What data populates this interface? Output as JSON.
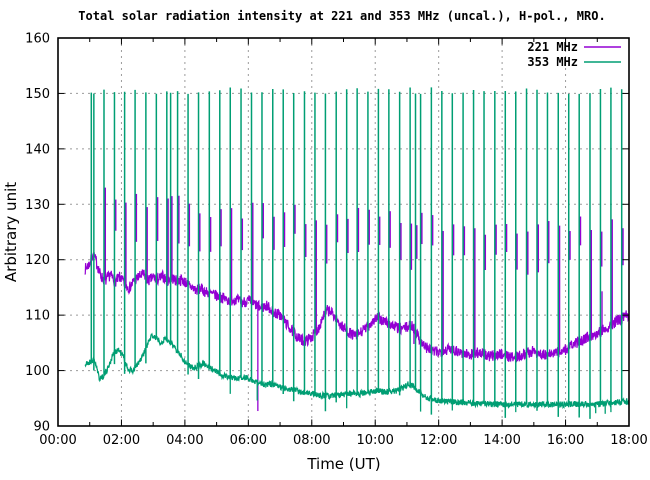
{
  "chart_data": {
    "type": "line",
    "title": "Total solar radiation intensity at 221 and 353 MHz (uncal.), H-pol., MRO.",
    "xlabel": "Time (UT)",
    "ylabel": "Arbitrary unit",
    "xlim": [
      0,
      18
    ],
    "ylim": [
      90,
      160
    ],
    "xtick_hours": [
      0,
      2,
      4,
      6,
      8,
      10,
      12,
      14,
      16,
      18
    ],
    "xtick_labels": [
      "00:00",
      "02:00",
      "04:00",
      "06:00",
      "08:00",
      "10:00",
      "12:00",
      "14:00",
      "16:00",
      "18:00"
    ],
    "minor_xtick_step_hours": 1,
    "ytick_values": [
      90,
      100,
      110,
      120,
      130,
      140,
      150,
      160
    ],
    "grid": {
      "on": true,
      "color": "#9b9b9b",
      "dash": [
        2,
        4
      ]
    },
    "background_color": "#ffffff",
    "border_color": "#000000",
    "legend": {
      "position": "top-right",
      "entries": [
        {
          "label": "221 MHz",
          "color": "#9400d3"
        },
        {
          "label": "353 MHz",
          "color": "#009e73"
        }
      ]
    },
    "data_start_hour": 0.85,
    "calibration_spike_times": [
      1.05,
      1.13,
      1.45,
      1.78,
      2.1,
      2.43,
      2.77,
      3.1,
      3.43,
      3.55,
      3.77,
      4.1,
      4.43,
      4.77,
      5.1,
      5.43,
      5.77,
      6.1,
      6.43,
      6.77,
      7.1,
      7.43,
      7.77,
      8.1,
      8.43,
      8.77,
      9.1,
      9.43,
      9.77,
      10.1,
      10.43,
      10.77,
      11.1,
      11.27,
      11.43,
      11.77,
      12.1,
      12.43,
      12.77,
      13.1,
      13.43,
      13.77,
      14.1,
      14.43,
      14.77,
      15.1,
      15.43,
      15.77,
      16.1,
      16.43,
      16.77,
      17.1,
      17.43,
      17.77
    ],
    "series": [
      {
        "name": "221 MHz",
        "color": "#9400d3",
        "noise": 1.0,
        "baseline": [
          [
            0.85,
            118.3
          ],
          [
            1.0,
            119.3
          ],
          [
            1.1,
            121.0
          ],
          [
            1.2,
            119.8
          ],
          [
            1.35,
            117.0
          ],
          [
            1.5,
            116.2
          ],
          [
            1.65,
            117.3
          ],
          [
            1.8,
            116.0
          ],
          [
            1.95,
            116.9
          ],
          [
            2.1,
            115.6
          ],
          [
            2.25,
            114.9
          ],
          [
            2.4,
            116.2
          ],
          [
            2.55,
            116.9
          ],
          [
            2.7,
            117.4
          ],
          [
            2.85,
            116.2
          ],
          [
            3.0,
            116.8
          ],
          [
            3.15,
            116.4
          ],
          [
            3.3,
            117.0
          ],
          [
            3.45,
            116.2
          ],
          [
            3.6,
            116.7
          ],
          [
            3.75,
            116.1
          ],
          [
            3.9,
            116.4
          ],
          [
            4.05,
            115.8
          ],
          [
            4.2,
            115.1
          ],
          [
            4.35,
            114.5
          ],
          [
            4.5,
            114.8
          ],
          [
            4.65,
            114.2
          ],
          [
            4.8,
            113.9
          ],
          [
            5.0,
            113.5
          ],
          [
            5.2,
            113.1
          ],
          [
            5.4,
            112.6
          ],
          [
            5.6,
            112.9
          ],
          [
            5.8,
            112.3
          ],
          [
            6.0,
            112.6
          ],
          [
            6.2,
            112.0
          ],
          [
            6.4,
            111.3
          ],
          [
            6.6,
            111.7
          ],
          [
            6.8,
            110.5
          ],
          [
            7.0,
            110.0
          ],
          [
            7.2,
            108.5
          ],
          [
            7.4,
            107.0
          ],
          [
            7.6,
            105.7
          ],
          [
            7.8,
            105.3
          ],
          [
            8.0,
            106.1
          ],
          [
            8.2,
            107.5
          ],
          [
            8.35,
            109.7
          ],
          [
            8.5,
            110.9
          ],
          [
            8.65,
            110.3
          ],
          [
            8.8,
            109.0
          ],
          [
            9.0,
            107.7
          ],
          [
            9.2,
            106.8
          ],
          [
            9.35,
            106.2
          ],
          [
            9.5,
            106.7
          ],
          [
            9.7,
            107.6
          ],
          [
            9.9,
            108.8
          ],
          [
            10.05,
            109.5
          ],
          [
            10.2,
            109.1
          ],
          [
            10.4,
            108.6
          ],
          [
            10.6,
            108.0
          ],
          [
            10.8,
            107.5
          ],
          [
            11.0,
            107.8
          ],
          [
            11.15,
            108.2
          ],
          [
            11.3,
            106.8
          ],
          [
            11.45,
            105.1
          ],
          [
            11.6,
            104.2
          ],
          [
            11.8,
            103.5
          ],
          [
            12.0,
            103.3
          ],
          [
            12.2,
            103.7
          ],
          [
            12.4,
            104.0
          ],
          [
            12.6,
            103.5
          ],
          [
            12.8,
            103.1
          ],
          [
            13.0,
            102.9
          ],
          [
            13.2,
            103.3
          ],
          [
            13.4,
            103.0
          ],
          [
            13.6,
            102.5
          ],
          [
            13.8,
            102.8
          ],
          [
            14.0,
            103.1
          ],
          [
            14.2,
            102.6
          ],
          [
            14.4,
            102.3
          ],
          [
            14.6,
            102.8
          ],
          [
            14.8,
            103.2
          ],
          [
            15.0,
            103.5
          ],
          [
            15.2,
            103.0
          ],
          [
            15.4,
            102.7
          ],
          [
            15.6,
            103.1
          ],
          [
            15.8,
            103.5
          ],
          [
            16.0,
            103.8
          ],
          [
            16.2,
            104.5
          ],
          [
            16.4,
            105.2
          ],
          [
            16.6,
            105.8
          ],
          [
            16.8,
            106.3
          ],
          [
            17.0,
            106.8
          ],
          [
            17.2,
            107.5
          ],
          [
            17.4,
            108.1
          ],
          [
            17.6,
            108.8
          ],
          [
            17.8,
            109.5
          ],
          [
            18.0,
            110.2
          ]
        ],
        "cal_spikes": {
          "time_offset": 0.035,
          "skip_first": 2,
          "top_curve": [
            [
              0.85,
              132.5
            ],
            [
              2.5,
              131.5
            ],
            [
              4,
              130
            ],
            [
              5.5,
              129
            ],
            [
              7,
              128.5
            ],
            [
              9,
              127.5
            ],
            [
              11,
              128
            ],
            [
              12,
              126.5
            ],
            [
              14,
              125.8
            ],
            [
              16,
              126.3
            ],
            [
              18,
              127.3
            ]
          ],
          "top_jitter": 1.8,
          "dash_depth_min": 5,
          "dash_depth_max": 9
        },
        "down_spikes": [
          [
            6.3,
            92.7
          ],
          [
            11.22,
            104.8
          ]
        ],
        "extra_spikes": [
          [
            17.15,
            114.3
          ]
        ]
      },
      {
        "name": "353 MHz",
        "color": "#009e73",
        "noise": 0.55,
        "baseline": [
          [
            0.85,
            101.0
          ],
          [
            1.0,
            101.5
          ],
          [
            1.15,
            102.0
          ],
          [
            1.3,
            98.6
          ],
          [
            1.45,
            99.1
          ],
          [
            1.6,
            100.8
          ],
          [
            1.75,
            103.2
          ],
          [
            1.9,
            103.8
          ],
          [
            2.05,
            102.6
          ],
          [
            2.2,
            100.3
          ],
          [
            2.35,
            99.9
          ],
          [
            2.5,
            101.0
          ],
          [
            2.65,
            102.3
          ],
          [
            2.8,
            104.4
          ],
          [
            2.95,
            106.3
          ],
          [
            3.1,
            105.9
          ],
          [
            3.25,
            105.1
          ],
          [
            3.4,
            105.8
          ],
          [
            3.55,
            104.9
          ],
          [
            3.7,
            104.1
          ],
          [
            3.85,
            102.9
          ],
          [
            4.0,
            101.6
          ],
          [
            4.15,
            100.9
          ],
          [
            4.3,
            100.5
          ],
          [
            4.45,
            100.9
          ],
          [
            4.6,
            101.2
          ],
          [
            4.75,
            100.6
          ],
          [
            4.9,
            100.1
          ],
          [
            5.05,
            99.6
          ],
          [
            5.2,
            99.1
          ],
          [
            5.35,
            98.9
          ],
          [
            5.5,
            98.7
          ],
          [
            5.7,
            98.6
          ],
          [
            5.9,
            98.8
          ],
          [
            6.1,
            98.3
          ],
          [
            6.3,
            97.8
          ],
          [
            6.5,
            97.5
          ],
          [
            6.7,
            97.6
          ],
          [
            6.9,
            97.2
          ],
          [
            7.1,
            96.9
          ],
          [
            7.3,
            96.7
          ],
          [
            7.5,
            96.4
          ],
          [
            7.7,
            96.1
          ],
          [
            7.9,
            95.9
          ],
          [
            8.1,
            95.7
          ],
          [
            8.3,
            95.5
          ],
          [
            8.5,
            95.4
          ],
          [
            8.7,
            95.5
          ],
          [
            8.9,
            95.6
          ],
          [
            9.1,
            95.8
          ],
          [
            9.3,
            95.9
          ],
          [
            9.5,
            95.8
          ],
          [
            9.7,
            96.0
          ],
          [
            9.9,
            96.2
          ],
          [
            10.1,
            96.3
          ],
          [
            10.3,
            96.1
          ],
          [
            10.5,
            96.2
          ],
          [
            10.7,
            96.4
          ],
          [
            10.9,
            97.0
          ],
          [
            11.05,
            97.6
          ],
          [
            11.2,
            97.1
          ],
          [
            11.35,
            96.3
          ],
          [
            11.5,
            95.5
          ],
          [
            11.7,
            95.0
          ],
          [
            11.9,
            94.7
          ],
          [
            12.1,
            94.5
          ],
          [
            12.3,
            94.4
          ],
          [
            12.5,
            94.3
          ],
          [
            12.8,
            94.2
          ],
          [
            13.1,
            94.1
          ],
          [
            13.5,
            94.0
          ],
          [
            14.0,
            93.9
          ],
          [
            14.5,
            93.9
          ],
          [
            15.0,
            93.9
          ],
          [
            15.5,
            93.9
          ],
          [
            16.0,
            93.9
          ],
          [
            16.5,
            94.0
          ],
          [
            17.0,
            93.9
          ],
          [
            17.3,
            94.1
          ],
          [
            17.6,
            94.3
          ],
          [
            18.0,
            94.5
          ]
        ],
        "cal_spikes": {
          "top": 150.5,
          "top_jitter": 0.6,
          "below_baseline_chance": 0.4,
          "below_baseline_depth": 2.0
        },
        "down_spikes": [
          [
            5.43,
            95.8
          ],
          [
            6.28,
            94.6
          ],
          [
            9.1,
            93.2
          ],
          [
            11.43,
            92.6
          ],
          [
            12.43,
            92.8
          ],
          [
            14.43,
            92.5
          ],
          [
            16.43,
            92.4
          ],
          [
            16.95,
            92.3
          ],
          [
            17.25,
            92.2
          ],
          [
            17.43,
            92.5
          ]
        ]
      }
    ]
  }
}
